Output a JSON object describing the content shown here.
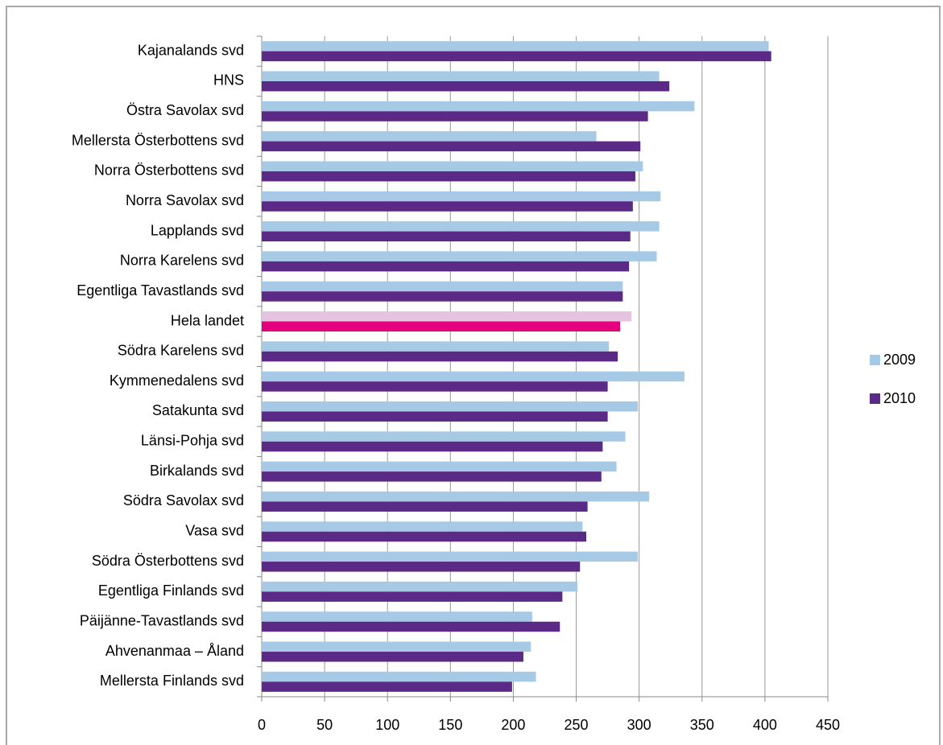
{
  "chart_data": {
    "type": "hbar",
    "categories": [
      "Kajanalands svd",
      "HNS",
      "Östra Savolax svd",
      "Mellersta Österbottens svd",
      "Norra Österbottens svd",
      "Norra Savolax svd",
      "Lapplands svd",
      "Norra Karelens svd",
      "Egentliga Tavastlands svd",
      "Hela landet",
      "Södra Karelens svd",
      "Kymmenedalens svd",
      "Satakunta svd",
      "Länsi-Pohja svd",
      "Birkalands svd",
      "Södra Savolax svd",
      "Vasa svd",
      "Södra Österbottens svd",
      "Egentliga Finlands svd",
      "Päijänne-Tavastlands svd",
      "Ahvenanmaa – Åland",
      "Mellersta Finlands svd"
    ],
    "series": [
      {
        "name": "2009",
        "color": "#a6cae6",
        "values": [
          403,
          316,
          344,
          266,
          303,
          317,
          316,
          314,
          287,
          294,
          276,
          336,
          299,
          289,
          282,
          308,
          255,
          299,
          251,
          215,
          214,
          218
        ]
      },
      {
        "name": "2010",
        "color": "#5b2a86",
        "values": [
          405,
          324,
          307,
          301,
          297,
          295,
          293,
          292,
          287,
          285,
          283,
          275,
          275,
          271,
          270,
          259,
          258,
          253,
          239,
          237,
          208,
          199
        ]
      }
    ],
    "highlight": {
      "index": 9,
      "colors": [
        "#e6c3df",
        "#e5007d"
      ]
    },
    "xlim": [
      0,
      450
    ],
    "xticks": [
      0,
      50,
      100,
      150,
      200,
      250,
      300,
      350,
      400,
      450
    ],
    "grid": true,
    "legend": "right"
  }
}
